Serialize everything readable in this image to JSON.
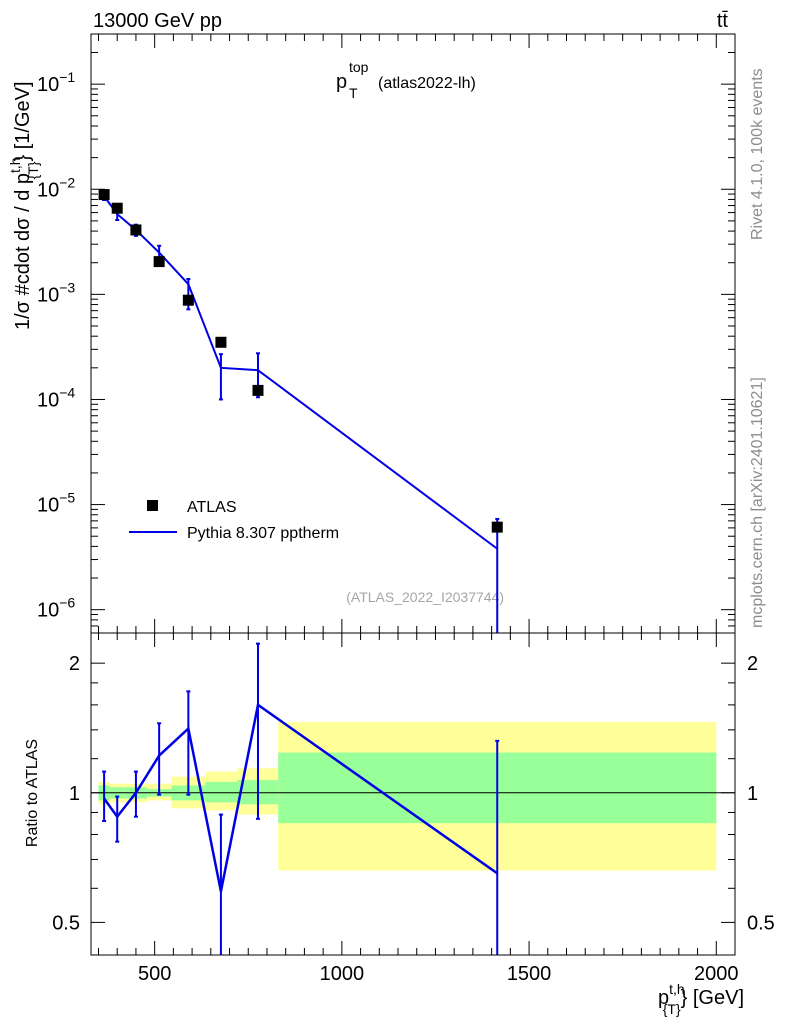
{
  "chart_data": [
    {
      "type": "line",
      "panel": "main",
      "header_left": "13000 GeV pp",
      "header_right": "tt̄",
      "title_main": "p",
      "title_sup": "top",
      "title_sub": "T",
      "title_tag": "(atlas2022-lh)",
      "ylabel_main": "1/σ #cdot dσ / d p",
      "ylabel_sup": "t,h",
      "ylabel_sub": "{T}",
      "ylabel_unit": "} [1/GeV]",
      "yscale": "log",
      "ylim": [
        6e-07,
        0.3
      ],
      "xlim": [
        330,
        2050
      ],
      "ytick_labels": [
        {
          "base": "10",
          "exp": "−1",
          "value": 0.1
        },
        {
          "base": "10",
          "exp": "−2",
          "value": 0.01
        },
        {
          "base": "10",
          "exp": "−3",
          "value": 0.001
        },
        {
          "base": "10",
          "exp": "−4",
          "value": 0.0001
        },
        {
          "base": "10",
          "exp": "−5",
          "value": 1e-05
        },
        {
          "base": "10",
          "exp": "−6",
          "value": 1e-06
        }
      ],
      "legend": {
        "position": "bottom-left",
        "entries": [
          "ATLAS",
          "Pythia 8.307 pptherm"
        ]
      },
      "watermark": "(ATLAS_2022_I2037744)",
      "series": [
        {
          "name": "ATLAS",
          "style": "black-square-markers",
          "x": [
            365,
            400,
            450,
            512,
            590,
            677,
            776,
            1415
          ],
          "y": [
            0.0089,
            0.0066,
            0.0041,
            0.00205,
            0.00088,
            0.00035,
            0.000122,
            6.1e-06
          ]
        },
        {
          "name": "Pythia 8.307 pptherm",
          "style": "blue-line",
          "x": [
            365,
            400,
            450,
            512,
            590,
            677,
            776,
            1415
          ],
          "y": [
            0.0086,
            0.0058,
            0.0041,
            0.0025,
            0.00125,
            0.0002,
            0.00019,
            3.8e-06
          ],
          "err_low": [
            0.0079,
            0.0051,
            0.0036,
            0.00195,
            0.00072,
            0.0001,
            0.000105,
            1e-07
          ],
          "err_high": [
            0.0093,
            0.0068,
            0.0046,
            0.0029,
            0.0014,
            0.00027,
            0.000275,
            7.3e-06
          ]
        }
      ]
    },
    {
      "type": "line",
      "panel": "ratio",
      "ylabel": "Ratio to ATLAS",
      "xlabel_main": "p",
      "xlabel_sup": "t,h",
      "xlabel_sub": "{T}",
      "xlabel_unit": "} [GeV]",
      "ylim": [
        0.42,
        2.35
      ],
      "xlim": [
        330,
        2050
      ],
      "xtick_labels": [
        "500",
        "1000",
        "1500",
        "2000"
      ],
      "xtick_values": [
        500,
        1000,
        1500,
        2000
      ],
      "ytick_labels": [
        "2",
        "1",
        "0.5"
      ],
      "ytick_values": [
        2,
        1,
        0.5
      ],
      "reference_line": 1,
      "bands": {
        "edges": [
          350,
          380,
          420,
          480,
          545,
          635,
          720,
          830,
          2000
        ],
        "inner_low": [
          0.96,
          0.97,
          0.97,
          0.98,
          0.96,
          0.95,
          0.94,
          0.85
        ],
        "inner_high": [
          1.04,
          1.03,
          1.03,
          1.02,
          1.04,
          1.06,
          1.07,
          1.24
        ],
        "outer_low": [
          0.94,
          0.95,
          0.95,
          0.96,
          0.92,
          0.91,
          0.89,
          0.66
        ],
        "outer_high": [
          1.06,
          1.05,
          1.05,
          1.05,
          1.09,
          1.12,
          1.14,
          1.46
        ]
      },
      "series": [
        {
          "name": "Pythia 8.307 pptherm",
          "x": [
            365,
            400,
            450,
            512,
            590,
            677,
            776,
            1415
          ],
          "y": [
            0.97,
            0.88,
            1.0,
            1.22,
            1.41,
            0.59,
            1.6,
            0.65
          ],
          "err_low": [
            0.86,
            0.77,
            0.88,
            0.99,
            0.99,
            0.3,
            0.87,
            0.3
          ],
          "err_high": [
            1.12,
            0.98,
            1.12,
            1.45,
            1.72,
            0.89,
            2.22,
            1.32
          ]
        }
      ]
    }
  ],
  "side_text_top": "Rivet 4.1.0,  100k events",
  "side_text_bottom": "mcplots.cern.ch [arXiv:2401.10621]",
  "colors": {
    "mc_line": "#0000e6",
    "data_marker": "#000000",
    "band_inner": "#99ff99",
    "band_outer": "#ffff99",
    "side_text": "#8c8c8c"
  }
}
